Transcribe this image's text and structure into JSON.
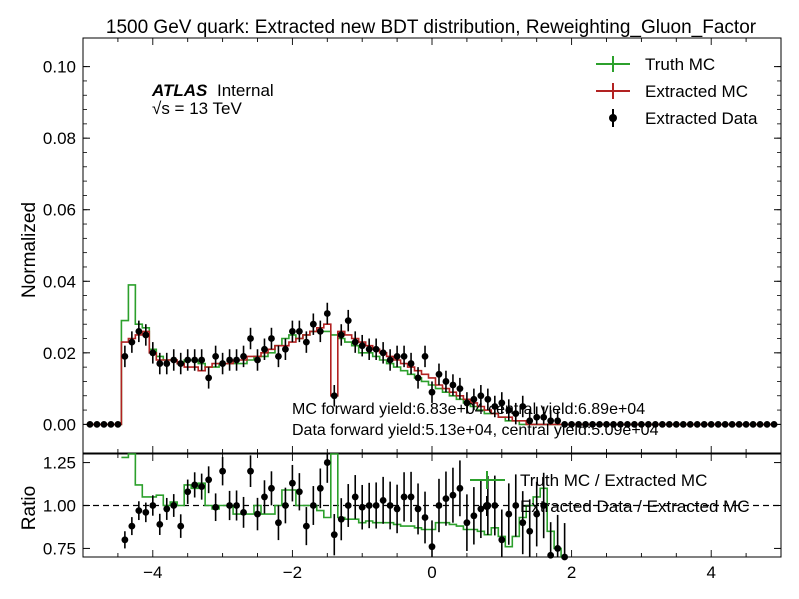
{
  "chart_data": [
    {
      "type": "line",
      "title": "1500 GeV quark: Extracted new BDT distribution, Reweighting_Gluon_Factor",
      "ylabel": "Normalized",
      "xlim": [
        -5,
        5
      ],
      "ylim": [
        -0.008,
        0.108
      ],
      "yticks": [
        "0.00",
        "0.02",
        "0.04",
        "0.06",
        "0.08",
        "0.10"
      ],
      "grid": false,
      "legend_position": "top-right",
      "atlas_label": "ATLAS",
      "atlas_sub": "Internal",
      "energy_label": "√s = 13 TeV",
      "annotations": [
        "MC forward yield:6.83e+04 central yield:6.89e+04",
        "Data forward yield:5.13e+04, central yield:5.09e+04"
      ],
      "x": [
        -4.9,
        -4.8,
        -4.7,
        -4.6,
        -4.5,
        -4.4,
        -4.3,
        -4.2,
        -4.1,
        -4.0,
        -3.9,
        -3.8,
        -3.7,
        -3.6,
        -3.5,
        -3.4,
        -3.3,
        -3.2,
        -3.1,
        -3.0,
        -2.9,
        -2.8,
        -2.7,
        -2.6,
        -2.5,
        -2.4,
        -2.3,
        -2.2,
        -2.1,
        -2.0,
        -1.9,
        -1.8,
        -1.7,
        -1.6,
        -1.5,
        -1.4,
        -1.3,
        -1.2,
        -1.1,
        -1.0,
        -0.9,
        -0.8,
        -0.7,
        -0.6,
        -0.5,
        -0.4,
        -0.3,
        -0.2,
        -0.1,
        0.0,
        0.1,
        0.2,
        0.3,
        0.4,
        0.5,
        0.6,
        0.7,
        0.8,
        0.9,
        1.0,
        1.1,
        1.2,
        1.3,
        1.4,
        1.5,
        1.6,
        1.7,
        1.8,
        1.9,
        2.0,
        2.1,
        2.2,
        2.3,
        2.4,
        2.5,
        2.6,
        2.7,
        2.8,
        2.9,
        3.0,
        3.1,
        3.2,
        3.3,
        3.4,
        3.5,
        3.6,
        3.7,
        3.8,
        3.9,
        4.0,
        4.1,
        4.2,
        4.3,
        4.4,
        4.5,
        4.6,
        4.7,
        4.8,
        4.9
      ],
      "series": [
        {
          "name": "Truth MC",
          "color": "#2ca02c",
          "values": [
            0,
            0,
            0,
            0,
            0,
            0.029,
            0.039,
            0.028,
            0.027,
            0.021,
            0.019,
            0.018,
            0.018,
            0.017,
            0.018,
            0.018,
            0.017,
            0.016,
            0.016,
            0.017,
            0.017,
            0.017,
            0.017,
            0.018,
            0.019,
            0.019,
            0.02,
            0.022,
            0.024,
            0.025,
            0.024,
            0.025,
            0.026,
            0.026,
            0.026,
            0.025,
            0.024,
            0.023,
            0.022,
            0.02,
            0.02,
            0.019,
            0.018,
            0.017,
            0.016,
            0.015,
            0.014,
            0.013,
            0.012,
            0.011,
            0.01,
            0.009,
            0.008,
            0.007,
            0.006,
            0.005,
            0.004,
            0.003,
            0.003,
            0.002,
            0.001,
            0.001,
            0,
            0,
            0,
            0,
            0,
            0,
            0,
            0,
            0,
            0,
            0,
            0,
            0,
            0,
            0,
            0,
            0,
            0,
            0,
            0,
            0,
            0,
            0,
            0,
            0,
            0,
            0,
            0,
            0,
            0,
            0,
            0,
            0,
            0,
            0,
            0,
            0
          ]
        },
        {
          "name": "Extracted MC",
          "color": "#b22222",
          "values": [
            0,
            0,
            0,
            0,
            0,
            0.023,
            0.024,
            0.025,
            0.026,
            0.02,
            0.018,
            0.018,
            0.018,
            0.017,
            0.016,
            0.016,
            0.015,
            0.016,
            0.017,
            0.017,
            0.017,
            0.018,
            0.018,
            0.019,
            0.019,
            0.02,
            0.021,
            0.022,
            0.022,
            0.023,
            0.024,
            0.025,
            0.026,
            0.027,
            0.028,
            0.008,
            0.026,
            0.025,
            0.024,
            0.023,
            0.022,
            0.021,
            0.02,
            0.019,
            0.018,
            0.017,
            0.016,
            0.015,
            0.014,
            0.013,
            0.011,
            0.01,
            0.009,
            0.008,
            0.007,
            0.006,
            0.005,
            0.004,
            0.003,
            0.002,
            0.002,
            0.001,
            0.001,
            0,
            0,
            0,
            0,
            0,
            0,
            0,
            0,
            0,
            0,
            0,
            0,
            0,
            0,
            0,
            0,
            0,
            0,
            0,
            0,
            0,
            0,
            0,
            0,
            0,
            0,
            0,
            0,
            0,
            0,
            0,
            0,
            0,
            0,
            0,
            0
          ]
        },
        {
          "name": "Extracted Data",
          "color": "#000000",
          "values": [
            0,
            0,
            0,
            0,
            0,
            0.019,
            0.023,
            0.026,
            0.025,
            0.02,
            0.017,
            0.017,
            0.018,
            0.017,
            0.018,
            0.018,
            0.018,
            0.013,
            0.019,
            0.017,
            0.018,
            0.018,
            0.019,
            0.024,
            0.018,
            0.021,
            0.024,
            0.019,
            0.021,
            0.026,
            0.026,
            0.023,
            0.028,
            0.026,
            0.031,
            0.008,
            0.025,
            0.029,
            0.023,
            0.022,
            0.021,
            0.021,
            0.02,
            0.018,
            0.019,
            0.019,
            0.017,
            0.013,
            0.019,
            0.009,
            0.014,
            0.012,
            0.011,
            0.01,
            0.006,
            0.007,
            0.008,
            0.007,
            0.005,
            0.006,
            0.004,
            0.003,
            0.005,
            0.001,
            0.002,
            0.002,
            0.001,
            0.001,
            0,
            0,
            0,
            0,
            0,
            0,
            0,
            0,
            0,
            0,
            0,
            0,
            0,
            0,
            0,
            0,
            0,
            0,
            0,
            0,
            0,
            0,
            0,
            0,
            0,
            0,
            0,
            0,
            0,
            0,
            0
          ],
          "errors": 0.003
        }
      ]
    },
    {
      "type": "line",
      "ylabel": "Ratio",
      "xlim": [
        -5,
        5
      ],
      "ylim": [
        0.7,
        1.3
      ],
      "yticks": [
        "0.75",
        "1.00",
        "1.25"
      ],
      "xticks": [
        "−4",
        "−2",
        "0",
        "2",
        "4"
      ],
      "reference_line": 1.0,
      "legend_position": "top-right",
      "x": [
        -4.4,
        -4.3,
        -4.2,
        -4.1,
        -4.0,
        -3.9,
        -3.8,
        -3.7,
        -3.6,
        -3.5,
        -3.4,
        -3.3,
        -3.2,
        -3.1,
        -3.0,
        -2.9,
        -2.8,
        -2.7,
        -2.6,
        -2.5,
        -2.4,
        -2.3,
        -2.2,
        -2.1,
        -2.0,
        -1.9,
        -1.8,
        -1.7,
        -1.6,
        -1.5,
        -1.4,
        -1.3,
        -1.2,
        -1.1,
        -1.0,
        -0.9,
        -0.8,
        -0.7,
        -0.6,
        -0.5,
        -0.4,
        -0.3,
        -0.2,
        -0.1,
        0.0,
        0.1,
        0.2,
        0.3,
        0.4,
        0.5,
        0.6,
        0.7,
        0.8,
        0.9,
        1.0,
        1.1,
        1.2,
        1.3,
        1.4,
        1.5,
        1.6,
        1.7,
        1.8,
        1.9
      ],
      "series": [
        {
          "name": "Truth MC / Extracted MC",
          "color": "#2ca02c",
          "values": [
            1.28,
            1.3,
            1.12,
            1.05,
            1.05,
            1.06,
            1.0,
            1.02,
            1.0,
            1.12,
            1.1,
            1.13,
            1.0,
            0.98,
            1.0,
            1.0,
            0.95,
            0.95,
            0.95,
            1.0,
            0.95,
            0.95,
            1.0,
            1.09,
            1.09,
            1.0,
            1.0,
            1.0,
            0.97,
            0.93,
            1.3,
            0.93,
            0.92,
            0.92,
            0.9,
            0.91,
            0.9,
            0.9,
            0.9,
            0.89,
            0.88,
            0.88,
            0.87,
            0.86,
            0.86,
            0.9,
            0.9,
            0.89,
            0.88,
            0.86,
            0.86,
            0.85,
            0.83,
            0.87,
            0.82,
            0.76,
            0.82,
            0.93,
            1.0,
            1.05,
            1.1,
            0.85,
            0.75,
            0.7
          ]
        },
        {
          "name": "Extracted Data / Extracted MC",
          "color": "#000000",
          "values": [
            0.8,
            0.88,
            0.97,
            0.96,
            1.0,
            0.89,
            0.98,
            1.0,
            0.88,
            1.08,
            1.12,
            1.11,
            1.15,
            0.99,
            1.2,
            1.0,
            1.0,
            0.96,
            1.2,
            0.95,
            1.05,
            1.1,
            0.9,
            1.0,
            1.13,
            1.08,
            0.88,
            1.0,
            1.1,
            1.25,
            0.83,
            0.92,
            1.0,
            1.05,
            0.99,
            1.0,
            1.0,
            1.03,
            1.0,
            0.98,
            1.05,
            1.05,
            0.98,
            0.93,
            0.76,
            1.0,
            1.04,
            1.06,
            1.1,
            0.9,
            0.94,
            0.98,
            1.0,
            1.0,
            0.8,
            0.95,
            1.0,
            0.9,
            0.85,
            0.95,
            1.0,
            0.71,
            0.75,
            0.7
          ]
        }
      ]
    }
  ]
}
